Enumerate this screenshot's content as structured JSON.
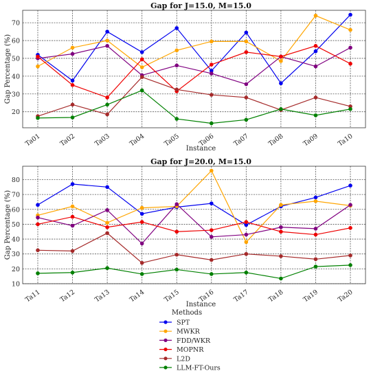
{
  "legend": {
    "title": "Methods",
    "placement": "bottom-center"
  },
  "chart_data": [
    {
      "type": "line",
      "title": "Gap for J=15.0, M=15.0",
      "xlabel": "Instance",
      "ylabel": "Gap Percentage (%)",
      "categories": [
        "Ta01",
        "Ta02",
        "Ta03",
        "Ta04",
        "Ta05",
        "Ta06",
        "Ta07",
        "Ta08",
        "Ta09",
        "Ta10"
      ],
      "ylim": [
        11,
        77
      ],
      "yticks": [
        20,
        30,
        40,
        50,
        60,
        70
      ],
      "grid": true,
      "series": [
        {
          "name": "SPT",
          "color": "#0000ee",
          "values": [
            52,
            37.5,
            65,
            53.5,
            67,
            43,
            64.5,
            36,
            54,
            74.5
          ]
        },
        {
          "name": "MWKR",
          "color": "#ffa500",
          "values": [
            45.5,
            56,
            60,
            45,
            54.5,
            59.5,
            59.5,
            48.5,
            74,
            66
          ]
        },
        {
          "name": "FDD/WKR",
          "color": "#800080",
          "values": [
            50,
            52.5,
            57,
            40.5,
            46,
            41.5,
            35.5,
            51,
            45.5,
            56
          ]
        },
        {
          "name": "MOPNR",
          "color": "#ee0000",
          "values": [
            51,
            35,
            28,
            49.5,
            31.5,
            46.5,
            53.5,
            51,
            57,
            47
          ]
        },
        {
          "name": "L2D",
          "color": "#a52a2a",
          "values": [
            17.5,
            24,
            18.5,
            39.5,
            32.5,
            29.5,
            28,
            21,
            28,
            23
          ]
        },
        {
          "name": "LLM-FT-Ours",
          "color": "#008000",
          "values": [
            16.5,
            16.8,
            24,
            32,
            16,
            13.5,
            15.5,
            21.5,
            18,
            21.5
          ]
        }
      ]
    },
    {
      "type": "line",
      "title": "Gap for J=20.0, M=15.0",
      "xlabel": "Instance",
      "ylabel": "Gap Percentage (%)",
      "categories": [
        "Ta11",
        "Ta12",
        "Ta13",
        "Ta14",
        "Ta15",
        "Ta16",
        "Ta17",
        "Ta18",
        "Ta19",
        "Ta20"
      ],
      "ylim": [
        10,
        89
      ],
      "yticks": [
        10,
        20,
        30,
        40,
        50,
        60,
        70,
        80
      ],
      "grid": true,
      "series": [
        {
          "name": "SPT",
          "color": "#0000ee",
          "values": [
            63,
            77,
            75,
            57,
            61.5,
            64,
            49.5,
            62,
            68,
            76
          ]
        },
        {
          "name": "MWKR",
          "color": "#ffa500",
          "values": [
            56,
            62,
            51,
            61,
            62,
            86,
            38,
            63,
            65.5,
            62.5
          ]
        },
        {
          "name": "FDD/WKR",
          "color": "#800080",
          "values": [
            54.5,
            49,
            59.5,
            37,
            63.5,
            41.5,
            43,
            48,
            47,
            63
          ]
        },
        {
          "name": "MOPNR",
          "color": "#ee0000",
          "values": [
            50,
            55,
            48,
            51.5,
            45,
            46,
            51.5,
            45,
            43,
            47.5
          ]
        },
        {
          "name": "L2D",
          "color": "#a52a2a",
          "values": [
            32.5,
            32,
            44,
            24,
            29.5,
            26,
            30,
            28.5,
            26.5,
            29
          ]
        },
        {
          "name": "LLM-FT-Ours",
          "color": "#008000",
          "values": [
            17,
            17.5,
            20.5,
            16.5,
            19.5,
            16.5,
            17.5,
            13.5,
            21.5,
            22.5
          ]
        }
      ]
    }
  ]
}
